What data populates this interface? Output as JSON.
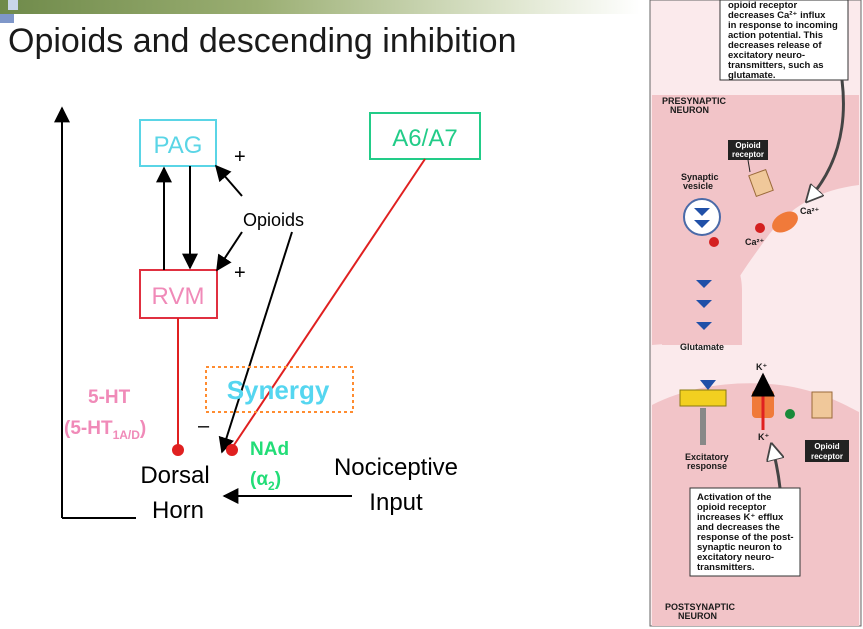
{
  "slide": {
    "title": "Opioids and descending inhibition"
  },
  "diagram": {
    "pag": "PAG",
    "rvm": "RVM",
    "a6a7": "A6/A7",
    "plus_top": "+",
    "plus_bottom": "+",
    "opioids": "Opioids",
    "synergy": "Synergy",
    "minus": "–",
    "ht_line1": "5-HT",
    "ht_line2_prefix": "(5-HT",
    "ht_line2_sub": "1A/D",
    "ht_line2_suffix": ")",
    "nad_line1": "NAd",
    "nad_line2_prefix": "(α",
    "nad_line2_sub": "2",
    "nad_line2_suffix": ")",
    "dorsal": "Dorsal",
    "horn": "Horn",
    "nociceptive": "Nociceptive",
    "input": "Input"
  },
  "illustration": {
    "top_callout": [
      "opioid receptor",
      "decreases Ca²⁺ influx",
      "in response to incoming",
      "action potential. This",
      "decreases release of",
      "excitatory neuro-",
      "transmitters, such as",
      "glutamate."
    ],
    "presynaptic": [
      "PRESYNAPTIC",
      "NEURON"
    ],
    "opioid_receptor_top": [
      "Opioid",
      "receptor"
    ],
    "synaptic_vesicle": [
      "Synaptic",
      "vesicle"
    ],
    "ca_right": "Ca²⁺",
    "ca_mid": "Ca²⁺",
    "glutamate": "Glutamate",
    "k_top": "K⁺",
    "k_bottom": "K⁺",
    "excitatory_response": [
      "Excitatory",
      "response"
    ],
    "opioid_receptor_bottom": [
      "Opioid",
      "receptor"
    ],
    "bottom_callout": [
      "Activation of the",
      "opioid receptor",
      "increases K⁺ efflux",
      "and decreases the",
      "response of the post-",
      "synaptic neuron to",
      "excitatory neuro-",
      "transmitters."
    ],
    "postsynaptic": [
      "POSTSYNAPTIC",
      "NEURON"
    ]
  },
  "colors": {
    "pag": "#5ad5e6",
    "rvm_border": "#e03040",
    "rvm_text": "#f08ab8",
    "a6a7": "#22cc88",
    "red_line": "#e02020",
    "ht": "#f08ab8",
    "nad": "#22dd77",
    "synergy_text": "#55d6f0",
    "synergy_border": "#ff8c30",
    "pink": "#f2c4c8"
  }
}
